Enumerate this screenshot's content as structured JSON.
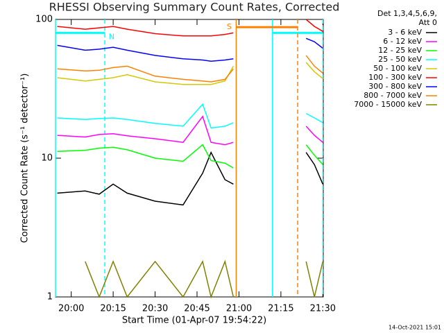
{
  "chart_data": {
    "type": "line",
    "title": "RHESSI Observing Summary Count Rates, Corrected",
    "ylabel": "Corrected Count Rate (s⁻¹ detector⁻¹)",
    "xlabel": "Start Time (01-Apr-07 19:54:22)",
    "legend_title": [
      "Det 1,3,4,5,6,9,",
      "Att 0"
    ],
    "footer": "14-Oct-2021 15:01",
    "log_y": true,
    "ylim": [
      1,
      100
    ],
    "yticks": [
      1,
      10,
      100
    ],
    "xlim": [
      "19:54:22",
      "21:30:10"
    ],
    "xticks": [
      "20:00",
      "20:15",
      "20:30",
      "20:45",
      "21:00",
      "21:15",
      "21:30"
    ],
    "x": [
      "19:55",
      "20:05",
      "20:10",
      "20:15",
      "20:20",
      "20:30",
      "20:40",
      "20:47",
      "20:50",
      "20:55",
      "20:58",
      "21:10",
      "21:24",
      "21:27",
      "21:30"
    ],
    "series": [
      {
        "name": "3 - 6 keV",
        "color": "#000000",
        "values": [
          5.6,
          5.8,
          5.5,
          6.5,
          5.6,
          4.9,
          4.6,
          7.8,
          11,
          7,
          6.5,
          null,
          11,
          9,
          6.5
        ]
      },
      {
        "name": "6 - 12 keV",
        "color": "#ff00ff",
        "values": [
          14.6,
          14.2,
          14.8,
          15,
          14.5,
          13.8,
          13,
          20,
          13,
          12.5,
          13,
          null,
          17,
          14.6,
          13
        ]
      },
      {
        "name": "12 - 25 keV",
        "color": "#00ff00",
        "values": [
          11.2,
          11.4,
          11.8,
          12,
          11.5,
          10,
          9.5,
          12.5,
          9.6,
          9.2,
          8.5,
          null,
          12.5,
          10.5,
          9
        ]
      },
      {
        "name": "25 - 50 keV",
        "color": "#00ffff",
        "values": [
          19.5,
          19,
          19.3,
          19.5,
          19,
          17.8,
          17,
          24.5,
          16.5,
          17,
          18,
          null,
          21,
          19.5,
          18
        ]
      },
      {
        "name": "50 - 100 keV",
        "color": "#d4c800",
        "values": [
          38,
          36,
          37,
          38,
          40,
          35.5,
          34,
          34,
          34,
          36,
          46,
          null,
          49,
          42,
          37.5
        ]
      },
      {
        "name": "100 - 300 keV",
        "color": "#ff0000",
        "values": [
          89,
          85,
          87,
          89,
          85,
          79,
          76,
          76,
          76,
          78,
          80,
          null,
          100,
          89,
          82
        ]
      },
      {
        "name": "300 - 800 keV",
        "color": "#0000ff",
        "values": [
          65,
          60,
          61,
          63,
          60,
          55,
          52,
          51,
          50,
          51,
          52,
          null,
          73,
          69,
          62
        ]
      },
      {
        "name": "800 - 7000 keV",
        "color": "#ff8000",
        "values": [
          44,
          42.5,
          43,
          45,
          46,
          39,
          37,
          36,
          35.5,
          37,
          44,
          null,
          55,
          46,
          41
        ]
      },
      {
        "name": "7000 - 15000 keV",
        "color": "#808000",
        "values": [
          null,
          1.8,
          1.0,
          1.8,
          1.0,
          1.8,
          1.0,
          1.8,
          1.0,
          1.8,
          1.0,
          null,
          1.8,
          1.0,
          1.8
        ]
      }
    ],
    "intervals": [
      {
        "label": "N",
        "color": "#00ffff",
        "start": "19:54:22",
        "end": "20:12",
        "level": 80
      },
      {
        "label": "",
        "color": "#00ffff",
        "start": "21:12",
        "end": "21:30",
        "level": 80
      },
      {
        "label": "S",
        "color": "#ff8000",
        "start": "20:59",
        "end": "21:21",
        "level": 88
      }
    ]
  }
}
